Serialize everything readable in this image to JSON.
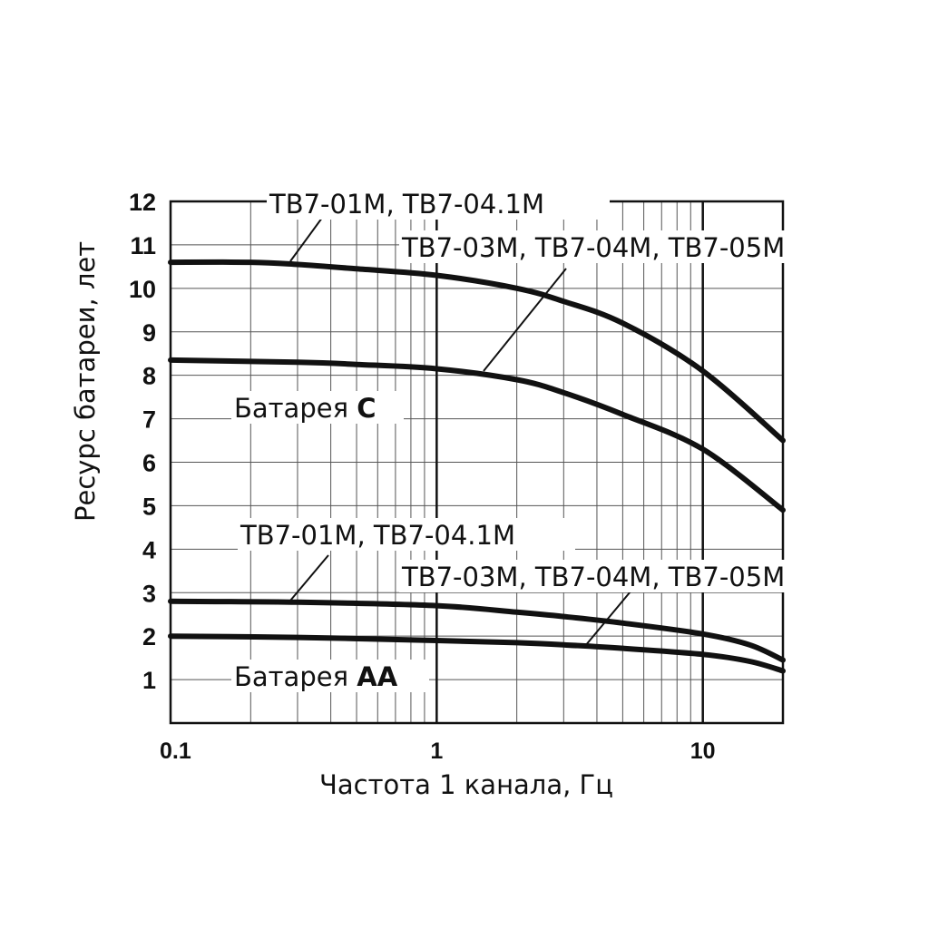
{
  "chart_data": {
    "type": "line",
    "xscale": "log",
    "xlim": [
      0.1,
      20
    ],
    "ylim": [
      0,
      12
    ],
    "xlabel": "Частота 1 канала, Гц",
    "ylabel": "Ресурс батареи, лет",
    "x_ticks": [
      "0.1",
      "1",
      "10"
    ],
    "y_ticks": [
      "1",
      "2",
      "3",
      "4",
      "5",
      "6",
      "7",
      "8",
      "9",
      "10",
      "11",
      "12"
    ],
    "grid": true,
    "series": [
      {
        "name": "ТВ7-01М, ТВ7-04.1М (Батарея C)",
        "x": [
          0.1,
          0.2,
          0.3,
          0.5,
          1,
          2,
          3,
          5,
          10,
          20
        ],
        "y": [
          10.6,
          10.6,
          10.55,
          10.45,
          10.3,
          10.0,
          9.7,
          9.2,
          8.1,
          6.5
        ]
      },
      {
        "name": "ТВ7-03М, ТВ7-04М, ТВ7-05М (Батарея C)",
        "x": [
          0.1,
          0.3,
          0.5,
          1,
          2,
          3,
          5,
          10,
          20
        ],
        "y": [
          8.35,
          8.3,
          8.25,
          8.15,
          7.9,
          7.6,
          7.1,
          6.3,
          4.9
        ]
      },
      {
        "name": "ТВ7-01М, ТВ7-04.1М (Батарея AA)",
        "x": [
          0.1,
          0.3,
          1,
          2,
          3,
          5,
          10,
          15,
          20
        ],
        "y": [
          2.8,
          2.78,
          2.7,
          2.55,
          2.45,
          2.3,
          2.05,
          1.8,
          1.45
        ]
      },
      {
        "name": "ТВ7-03М, ТВ7-04М, ТВ7-05М (Батарея AA)",
        "x": [
          0.1,
          0.3,
          1,
          2,
          3,
          5,
          10,
          15,
          20
        ],
        "y": [
          2.0,
          1.97,
          1.9,
          1.85,
          1.8,
          1.72,
          1.58,
          1.42,
          1.2
        ]
      }
    ],
    "annotations": {
      "c_top": "ТВ7-01М, ТВ7-04.1М",
      "c_bottom": "ТВ7-03М, ТВ7-04М, ТВ7-05М",
      "c_battery_prefix": "Батарея ",
      "c_battery_type": "C",
      "aa_top": "ТВ7-01М, ТВ7-04.1М",
      "aa_bottom": "ТВ7-03М, ТВ7-04М, ТВ7-05М",
      "aa_battery_prefix": "Батарея ",
      "aa_battery_type": "AA"
    }
  }
}
